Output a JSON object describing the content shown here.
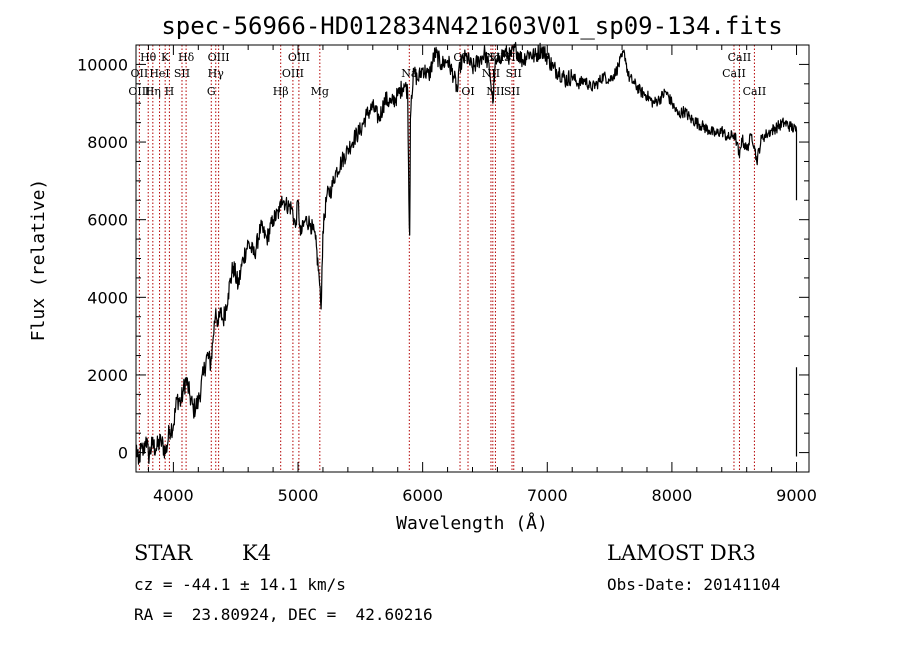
{
  "chart_data": {
    "type": "line",
    "title": "spec-56966-HD012834N421603V01_sp09-134.fits",
    "xlabel": "Wavelength (Å)",
    "ylabel": "Flux (relative)",
    "xlim": [
      3700,
      9100
    ],
    "ylim": [
      -500,
      10500
    ],
    "xticks": [
      4000,
      5000,
      6000,
      7000,
      8000,
      9000
    ],
    "yticks": [
      0,
      2000,
      4000,
      6000,
      8000,
      10000
    ],
    "spectrum": {
      "name": "flux",
      "x": [
        3700,
        3720,
        3740,
        3760,
        3780,
        3800,
        3830,
        3860,
        3900,
        3940,
        3970,
        4000,
        4030,
        4060,
        4080,
        4100,
        4130,
        4160,
        4200,
        4240,
        4270,
        4300,
        4320,
        4340,
        4360,
        4380,
        4400,
        4440,
        4480,
        4520,
        4560,
        4600,
        4650,
        4700,
        4750,
        4800,
        4850,
        4870,
        4900,
        4950,
        4980,
        5000,
        5020,
        5060,
        5100,
        5140,
        5170,
        5185,
        5200,
        5230,
        5270,
        5300,
        5350,
        5400,
        5450,
        5500,
        5550,
        5600,
        5650,
        5700,
        5750,
        5800,
        5850,
        5880,
        5890,
        5896,
        5902,
        5910,
        5930,
        5960,
        6000,
        6050,
        6100,
        6150,
        6200,
        6250,
        6280,
        6300,
        6350,
        6400,
        6450,
        6500,
        6540,
        6563,
        6580,
        6620,
        6660,
        6700,
        6750,
        6800,
        6850,
        6900,
        6950,
        7000,
        7050,
        7100,
        7150,
        7200,
        7250,
        7300,
        7350,
        7400,
        7450,
        7500,
        7550,
        7600,
        7620,
        7650,
        7700,
        7750,
        7800,
        7850,
        7900,
        7950,
        8000,
        8050,
        8100,
        8150,
        8200,
        8250,
        8300,
        8350,
        8400,
        8450,
        8500,
        8520,
        8542,
        8560,
        8600,
        8640,
        8662,
        8680,
        8720,
        8760,
        8800,
        8850,
        8900,
        8950,
        9000
      ],
      "y": [
        200,
        -300,
        100,
        0,
        400,
        -100,
        200,
        100,
        300,
        0,
        600,
        700,
        1400,
        1300,
        1600,
        1900,
        1500,
        1100,
        1300,
        2000,
        2500,
        2300,
        3000,
        3700,
        3300,
        3600,
        3400,
        4100,
        4800,
        4300,
        5000,
        5400,
        5100,
        5800,
        5500,
        6000,
        6200,
        6600,
        6400,
        6300,
        5800,
        6500,
        5600,
        6000,
        5900,
        5500,
        4500,
        3700,
        5700,
        6600,
        6800,
        7200,
        7500,
        7800,
        8100,
        8300,
        8700,
        8900,
        8600,
        9100,
        9000,
        9200,
        9500,
        9300,
        6500,
        5600,
        8600,
        9200,
        9800,
        9600,
        9900,
        9700,
        10300,
        10000,
        10100,
        9700,
        9300,
        10000,
        10200,
        9900,
        10100,
        10300,
        9800,
        9000,
        9900,
        10200,
        10300,
        10200,
        10400,
        10100,
        10300,
        10200,
        10400,
        10200,
        9900,
        9800,
        9600,
        9700,
        9500,
        9600,
        9400,
        9500,
        9700,
        9600,
        9800,
        10200,
        10300,
        9700,
        9500,
        9300,
        9200,
        9000,
        9100,
        9300,
        9000,
        8700,
        8800,
        8600,
        8500,
        8400,
        8300,
        8200,
        8300,
        8100,
        8200,
        8000,
        7600,
        8100,
        7800,
        8200,
        7900,
        7500,
        8100,
        8200,
        8300,
        8400,
        8500,
        8400,
        8300
      ]
    },
    "spectral_lines": [
      {
        "label": "Hθ",
        "x": 3798,
        "row": 1
      },
      {
        "label": "OII",
        "x": 3727,
        "row": 2
      },
      {
        "label": "OIII",
        "x": 3727,
        "row": 3
      },
      {
        "label": "K",
        "x": 3934,
        "row": 1
      },
      {
        "label": "HeI",
        "x": 3889,
        "row": 2
      },
      {
        "label": "Hη",
        "x": 3835,
        "row": 3
      },
      {
        "label": "Hδ",
        "x": 4102,
        "row": 1
      },
      {
        "label": "SII",
        "x": 4069,
        "row": 2
      },
      {
        "label": "H",
        "x": 3968,
        "row": 3
      },
      {
        "label": "OIII",
        "x": 4363,
        "row": 1
      },
      {
        "label": "Hγ",
        "x": 4340,
        "row": 2
      },
      {
        "label": "G",
        "x": 4304,
        "row": 3
      },
      {
        "label": "OIII",
        "x": 5007,
        "row": 1
      },
      {
        "label": "OIII",
        "x": 4959,
        "row": 2
      },
      {
        "label": "Hβ",
        "x": 4861,
        "row": 3
      },
      {
        "label": "Mg",
        "x": 5175,
        "row": 3
      },
      {
        "label": "Na",
        "x": 5893,
        "row": 2
      },
      {
        "label": "OI",
        "x": 6300,
        "row": 1
      },
      {
        "label": "OI",
        "x": 6364,
        "row": 3
      },
      {
        "label": "Hα",
        "x": 6563,
        "row": 1
      },
      {
        "label": "NII",
        "x": 6584,
        "row": 1
      },
      {
        "label": "SII",
        "x": 6717,
        "row": 1
      },
      {
        "label": "NII",
        "x": 6548,
        "row": 2
      },
      {
        "label": "SII",
        "x": 6731,
        "row": 2
      },
      {
        "label": "NII",
        "x": 6584,
        "row": 3
      },
      {
        "label": "SII",
        "x": 6717,
        "row": 3
      },
      {
        "label": "CaII",
        "x": 8542,
        "row": 1
      },
      {
        "label": "CaII",
        "x": 8498,
        "row": 2
      },
      {
        "label": "CaII",
        "x": 8662,
        "row": 3
      }
    ]
  },
  "info": {
    "object_class": "STAR",
    "subclass": "K4",
    "survey": "LAMOST DR3",
    "redshift_text": "cz = -44.1 ± 14.1 km/s",
    "obs_date_text": "Obs-Date: 20141104",
    "coords_text": "RA =  23.80924, DEC =  42.60216"
  }
}
